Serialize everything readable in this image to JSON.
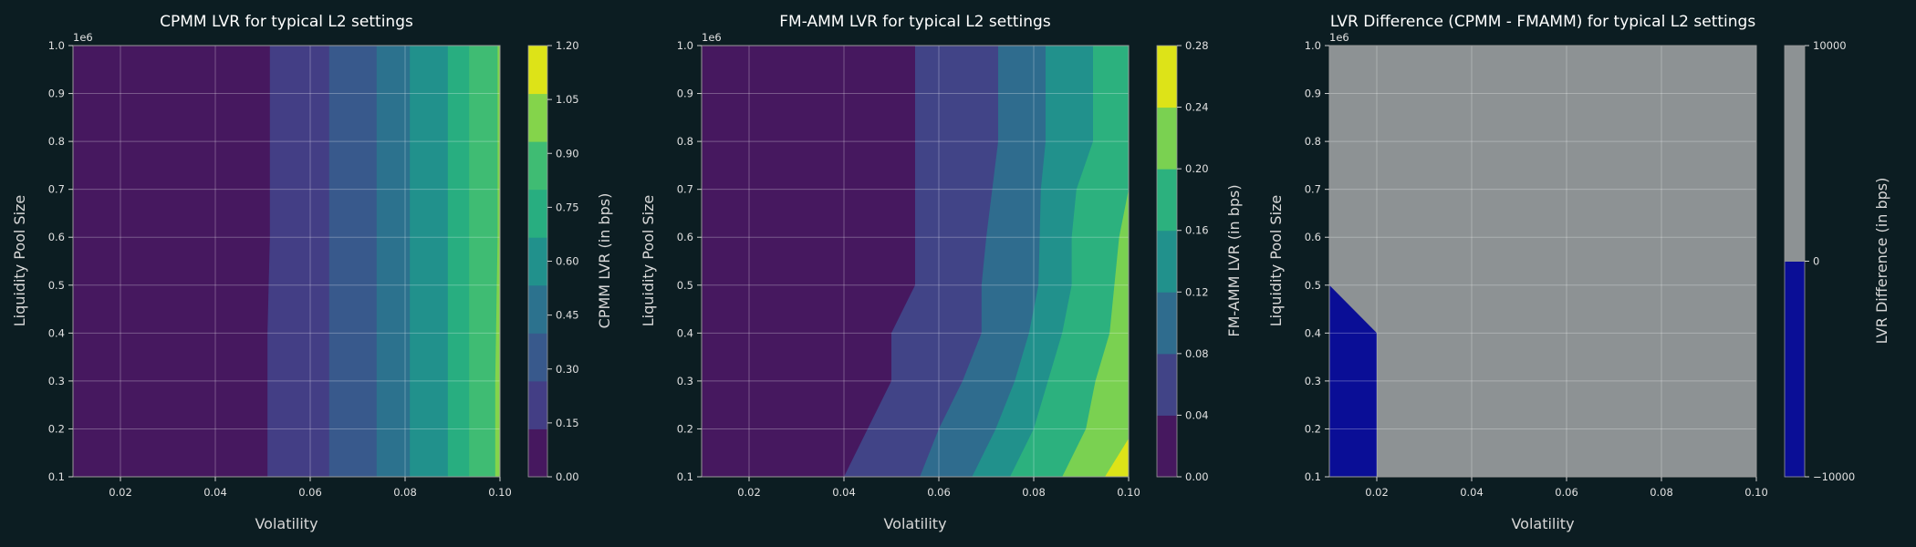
{
  "chart_data": [
    {
      "type": "contour",
      "title": "CPMM LVR for typical L2 settings",
      "xlabel": "Volatility",
      "ylabel": "Liquidity Pool Size",
      "y_offset_label": "1e6",
      "xlim": [
        0.01,
        0.1
      ],
      "ylim": [
        0.1,
        1.0
      ],
      "x_ticks": [
        "0.02",
        "0.04",
        "0.06",
        "0.08",
        "0.10"
      ],
      "y_ticks": [
        "0.1",
        "0.2",
        "0.3",
        "0.4",
        "0.5",
        "0.6",
        "0.7",
        "0.8",
        "0.9",
        "1.0"
      ],
      "colorbar_label": "CPMM LVR (in bps)",
      "levels": [
        0.0,
        0.15,
        0.3,
        0.45,
        0.6,
        0.75,
        0.9,
        1.05,
        1.2
      ],
      "colorbar_ticks": [
        "0.00",
        "0.15",
        "0.30",
        "0.45",
        "0.60",
        "0.75",
        "0.90",
        "1.05",
        "1.20"
      ],
      "colors": [
        "#46185f",
        "#433e85",
        "#38598c",
        "#2c728e",
        "#21918c",
        "#28ae80",
        "#3fbc73",
        "#84d44b",
        "#dde318"
      ],
      "boundaries": [
        [
          [
            0.051,
            0.1
          ],
          [
            0.051,
            0.4
          ],
          [
            0.0515,
            0.6
          ],
          [
            0.0515,
            1.0
          ]
        ],
        [
          [
            0.064,
            0.1
          ],
          [
            0.064,
            1.0
          ]
        ],
        [
          [
            0.074,
            0.1
          ],
          [
            0.074,
            1.0
          ]
        ],
        [
          [
            0.081,
            0.1
          ],
          [
            0.081,
            1.0
          ]
        ],
        [
          [
            0.089,
            0.1
          ],
          [
            0.089,
            1.0
          ]
        ],
        [
          [
            0.0935,
            0.1
          ],
          [
            0.0935,
            1.0
          ]
        ],
        [
          [
            0.099,
            0.1
          ],
          [
            0.099,
            0.3
          ],
          [
            0.0995,
            0.6
          ],
          [
            0.0995,
            1.0
          ]
        ]
      ],
      "grid": true
    },
    {
      "type": "contour",
      "title": "FM-AMM LVR for typical L2 settings",
      "xlabel": "Volatility",
      "ylabel": "Liquidity Pool Size",
      "y_offset_label": "1e6",
      "xlim": [
        0.01,
        0.1
      ],
      "ylim": [
        0.1,
        1.0
      ],
      "x_ticks": [
        "0.02",
        "0.04",
        "0.06",
        "0.08",
        "0.10"
      ],
      "y_ticks": [
        "0.1",
        "0.2",
        "0.3",
        "0.4",
        "0.5",
        "0.6",
        "0.7",
        "0.8",
        "0.9",
        "1.0"
      ],
      "colorbar_label": "FM-AMM LVR (in bps)",
      "levels": [
        0.0,
        0.04,
        0.08,
        0.12,
        0.16,
        0.2,
        0.24,
        0.28
      ],
      "colorbar_ticks": [
        "0.00",
        "0.04",
        "0.08",
        "0.12",
        "0.16",
        "0.20",
        "0.24",
        "0.28"
      ],
      "colors": [
        "#46185f",
        "#414487",
        "#2f6c8e",
        "#21918c",
        "#2cb17e",
        "#7ad151",
        "#dde318"
      ],
      "boundaries": [
        [
          [
            0.04,
            0.1
          ],
          [
            0.05,
            0.3
          ],
          [
            0.05,
            0.4
          ],
          [
            0.055,
            0.5
          ],
          [
            0.055,
            1.0
          ]
        ],
        [
          [
            0.056,
            0.1
          ],
          [
            0.06,
            0.2
          ],
          [
            0.065,
            0.3
          ],
          [
            0.069,
            0.4
          ],
          [
            0.069,
            0.5
          ],
          [
            0.07,
            0.6
          ],
          [
            0.0725,
            0.8
          ],
          [
            0.0725,
            1.0
          ]
        ],
        [
          [
            0.067,
            0.1
          ],
          [
            0.072,
            0.2
          ],
          [
            0.076,
            0.3
          ],
          [
            0.079,
            0.4
          ],
          [
            0.081,
            0.5
          ],
          [
            0.0815,
            0.7
          ],
          [
            0.0825,
            0.8
          ],
          [
            0.0825,
            1.0
          ]
        ],
        [
          [
            0.075,
            0.1
          ],
          [
            0.08,
            0.2
          ],
          [
            0.083,
            0.3
          ],
          [
            0.086,
            0.4
          ],
          [
            0.088,
            0.5
          ],
          [
            0.088,
            0.6
          ],
          [
            0.089,
            0.7
          ],
          [
            0.0925,
            0.8
          ],
          [
            0.0925,
            1.0
          ]
        ],
        [
          [
            0.086,
            0.1
          ],
          [
            0.091,
            0.2
          ],
          [
            0.093,
            0.3
          ],
          [
            0.096,
            0.4
          ],
          [
            0.097,
            0.5
          ],
          [
            0.098,
            0.6
          ],
          [
            0.1,
            0.7
          ],
          [
            0.1,
            1.0
          ]
        ],
        [
          [
            0.095,
            0.1
          ],
          [
            0.1,
            0.18
          ]
        ]
      ],
      "grid": true
    },
    {
      "type": "contour",
      "title": "LVR Difference (CPMM - FMAMM) for typical L2 settings",
      "xlabel": "Volatility",
      "ylabel": "Liquidity Pool Size",
      "y_offset_label": "1e6",
      "xlim": [
        0.01,
        0.1
      ],
      "ylim": [
        0.1,
        1.0
      ],
      "x_ticks": [
        "0.02",
        "0.04",
        "0.06",
        "0.08",
        "0.10"
      ],
      "y_ticks": [
        "0.1",
        "0.2",
        "0.3",
        "0.4",
        "0.5",
        "0.6",
        "0.7",
        "0.8",
        "0.9",
        "1.0"
      ],
      "colorbar_label": "LVR Difference (in bps)",
      "levels": [
        -10000,
        0,
        10000
      ],
      "colorbar_ticks": [
        "−10000",
        "0",
        "10000"
      ],
      "colors": [
        "#0a0e96",
        "#8d9294"
      ],
      "negative_region": [
        [
          0.01,
          0.1
        ],
        [
          0.01,
          0.5
        ],
        [
          0.02,
          0.4
        ],
        [
          0.02,
          0.1
        ]
      ],
      "grid": true
    }
  ]
}
